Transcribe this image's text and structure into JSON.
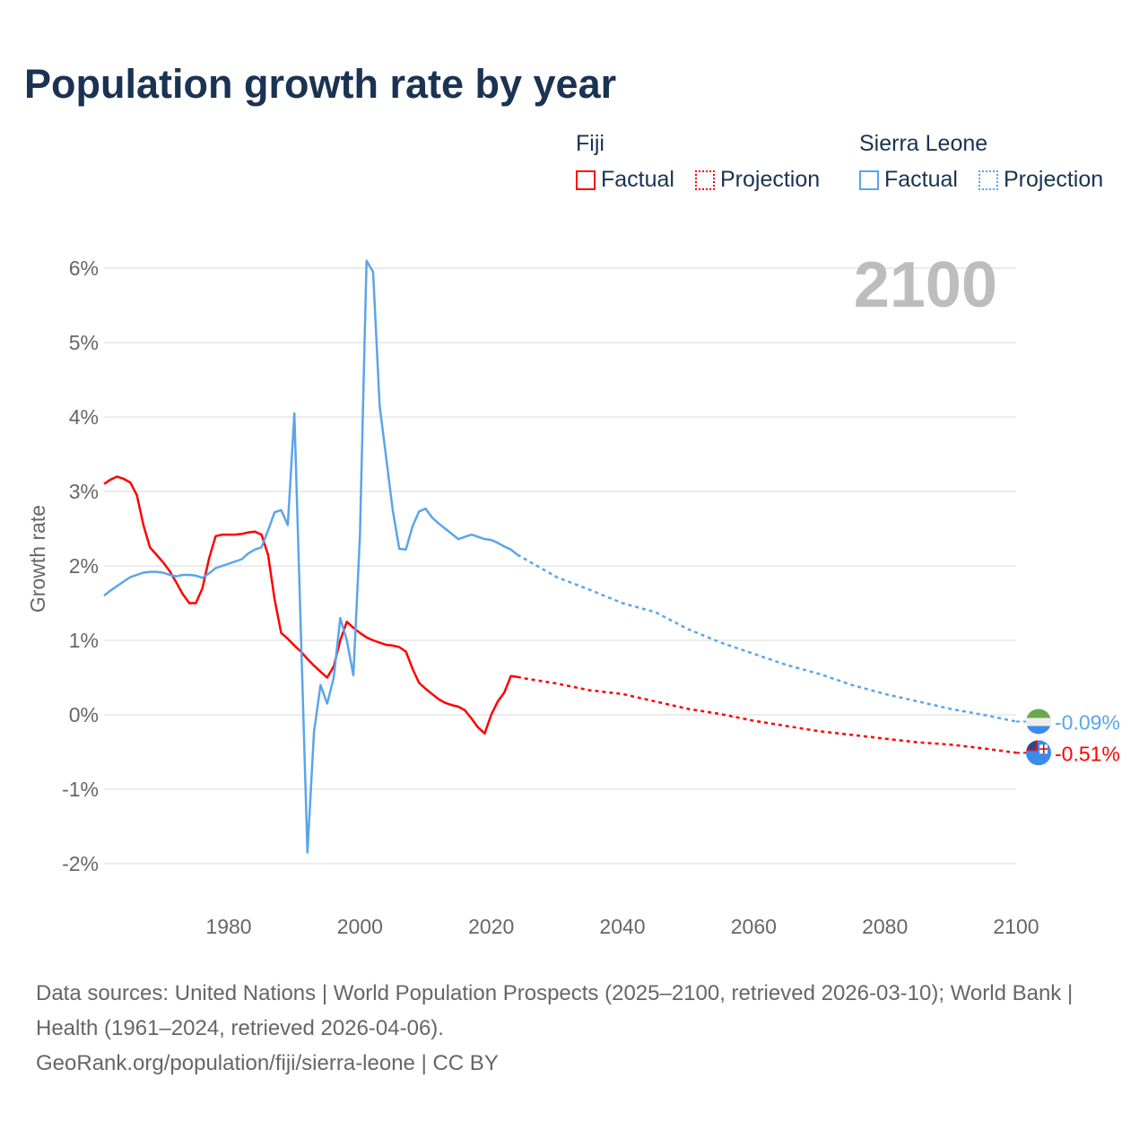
{
  "chart_data": {
    "type": "line",
    "title": "Population growth rate by year",
    "ylabel": "Growth rate",
    "xlabel": "",
    "xlim": [
      1961,
      2100
    ],
    "ylim": [
      -2,
      6
    ],
    "yticks": [
      -2,
      -1,
      0,
      1,
      2,
      3,
      4,
      5,
      6
    ],
    "ytick_labels": [
      "-2%",
      "-1%",
      "0%",
      "1%",
      "2%",
      "3%",
      "4%",
      "5%",
      "6%"
    ],
    "xticks": [
      1980,
      2000,
      2020,
      2040,
      2060,
      2080,
      2100
    ],
    "xtick_labels": [
      "1980",
      "2000",
      "2020",
      "2040",
      "2060",
      "2080",
      "2100"
    ],
    "current_year": "2100",
    "grid": true,
    "legend": {
      "placement": "top-right",
      "groups": [
        {
          "name": "Fiji",
          "factual": "Factual",
          "projection": "Projection"
        },
        {
          "name": "Sierra Leone",
          "factual": "Factual",
          "projection": "Projection"
        }
      ]
    },
    "series": [
      {
        "name": "Fiji",
        "color": "#ff0000",
        "end_label": "-0.51%",
        "factual": {
          "x": [
            1961,
            1962,
            1963,
            1964,
            1965,
            1966,
            1967,
            1968,
            1969,
            1970,
            1971,
            1972,
            1973,
            1974,
            1975,
            1976,
            1977,
            1978,
            1979,
            1980,
            1981,
            1982,
            1983,
            1984,
            1985,
            1986,
            1987,
            1988,
            1989,
            1990,
            1991,
            1992,
            1993,
            1994,
            1995,
            1996,
            1997,
            1998,
            1999,
            2000,
            2001,
            2002,
            2003,
            2004,
            2005,
            2006,
            2007,
            2008,
            2009,
            2010,
            2011,
            2012,
            2013,
            2014,
            2015,
            2016,
            2017,
            2018,
            2019,
            2020,
            2021,
            2022,
            2023,
            2024
          ],
          "y": [
            3.1,
            3.16,
            3.2,
            3.17,
            3.12,
            2.95,
            2.55,
            2.25,
            2.15,
            2.05,
            1.93,
            1.78,
            1.62,
            1.5,
            1.5,
            1.7,
            2.1,
            2.4,
            2.42,
            2.42,
            2.42,
            2.43,
            2.45,
            2.46,
            2.42,
            2.15,
            1.55,
            1.1,
            1.02,
            0.93,
            0.85,
            0.75,
            0.66,
            0.58,
            0.5,
            0.65,
            1.0,
            1.25,
            1.17,
            1.1,
            1.04,
            1.0,
            0.97,
            0.94,
            0.93,
            0.91,
            0.85,
            0.62,
            0.43,
            0.35,
            0.28,
            0.21,
            0.16,
            0.13,
            0.11,
            0.06,
            -0.05,
            -0.17,
            -0.25,
            0.0,
            0.18,
            0.3,
            0.52,
            0.51
          ]
        },
        "projection": {
          "x": [
            2024,
            2025,
            2030,
            2035,
            2040,
            2045,
            2050,
            2055,
            2060,
            2065,
            2070,
            2075,
            2080,
            2085,
            2090,
            2095,
            2100
          ],
          "y": [
            0.51,
            0.49,
            0.42,
            0.33,
            0.28,
            0.18,
            0.08,
            0.01,
            -0.08,
            -0.15,
            -0.22,
            -0.27,
            -0.32,
            -0.37,
            -0.4,
            -0.45,
            -0.51
          ]
        }
      },
      {
        "name": "Sierra Leone",
        "color": "#5aa5ea",
        "end_label": "-0.09%",
        "factual": {
          "x": [
            1961,
            1962,
            1963,
            1964,
            1965,
            1966,
            1967,
            1968,
            1969,
            1970,
            1971,
            1972,
            1973,
            1974,
            1975,
            1976,
            1977,
            1978,
            1979,
            1980,
            1981,
            1982,
            1983,
            1984,
            1985,
            1986,
            1987,
            1988,
            1989,
            1990,
            1991,
            1992,
            1993,
            1994,
            1995,
            1996,
            1997,
            1998,
            1999,
            2000,
            2001,
            2002,
            2003,
            2004,
            2005,
            2006,
            2007,
            2008,
            2009,
            2010,
            2011,
            2012,
            2013,
            2014,
            2015,
            2016,
            2017,
            2018,
            2019,
            2020,
            2021,
            2022,
            2023,
            2024
          ],
          "y": [
            1.6,
            1.67,
            1.73,
            1.79,
            1.85,
            1.88,
            1.91,
            1.92,
            1.92,
            1.91,
            1.88,
            1.86,
            1.88,
            1.88,
            1.87,
            1.84,
            1.9,
            1.97,
            2.0,
            2.03,
            2.06,
            2.09,
            2.17,
            2.22,
            2.25,
            2.48,
            2.72,
            2.75,
            2.55,
            4.05,
            1.1,
            -1.85,
            -0.23,
            0.4,
            0.15,
            0.5,
            1.3,
            1.0,
            0.53,
            2.4,
            6.1,
            5.95,
            4.15,
            3.45,
            2.75,
            2.23,
            2.22,
            2.53,
            2.73,
            2.77,
            2.65,
            2.57,
            2.5,
            2.43,
            2.36,
            2.39,
            2.42,
            2.39,
            2.36,
            2.35,
            2.31,
            2.26,
            2.22,
            2.15
          ]
        },
        "projection": {
          "x": [
            2024,
            2025,
            2030,
            2035,
            2040,
            2045,
            2050,
            2055,
            2060,
            2065,
            2070,
            2075,
            2080,
            2085,
            2090,
            2095,
            2100
          ],
          "y": [
            2.15,
            2.1,
            1.85,
            1.68,
            1.5,
            1.38,
            1.15,
            0.97,
            0.82,
            0.67,
            0.55,
            0.4,
            0.28,
            0.18,
            0.08,
            0.0,
            -0.09
          ]
        }
      }
    ]
  },
  "footer": {
    "sources": "Data sources: United Nations | World Population Prospects (2025–2100, retrieved 2026-03-10); World Bank | Health (1961–2024, retrieved 2026-04-06).",
    "credit": "GeoRank.org/population/fiji/sierra-leone | CC BY"
  }
}
